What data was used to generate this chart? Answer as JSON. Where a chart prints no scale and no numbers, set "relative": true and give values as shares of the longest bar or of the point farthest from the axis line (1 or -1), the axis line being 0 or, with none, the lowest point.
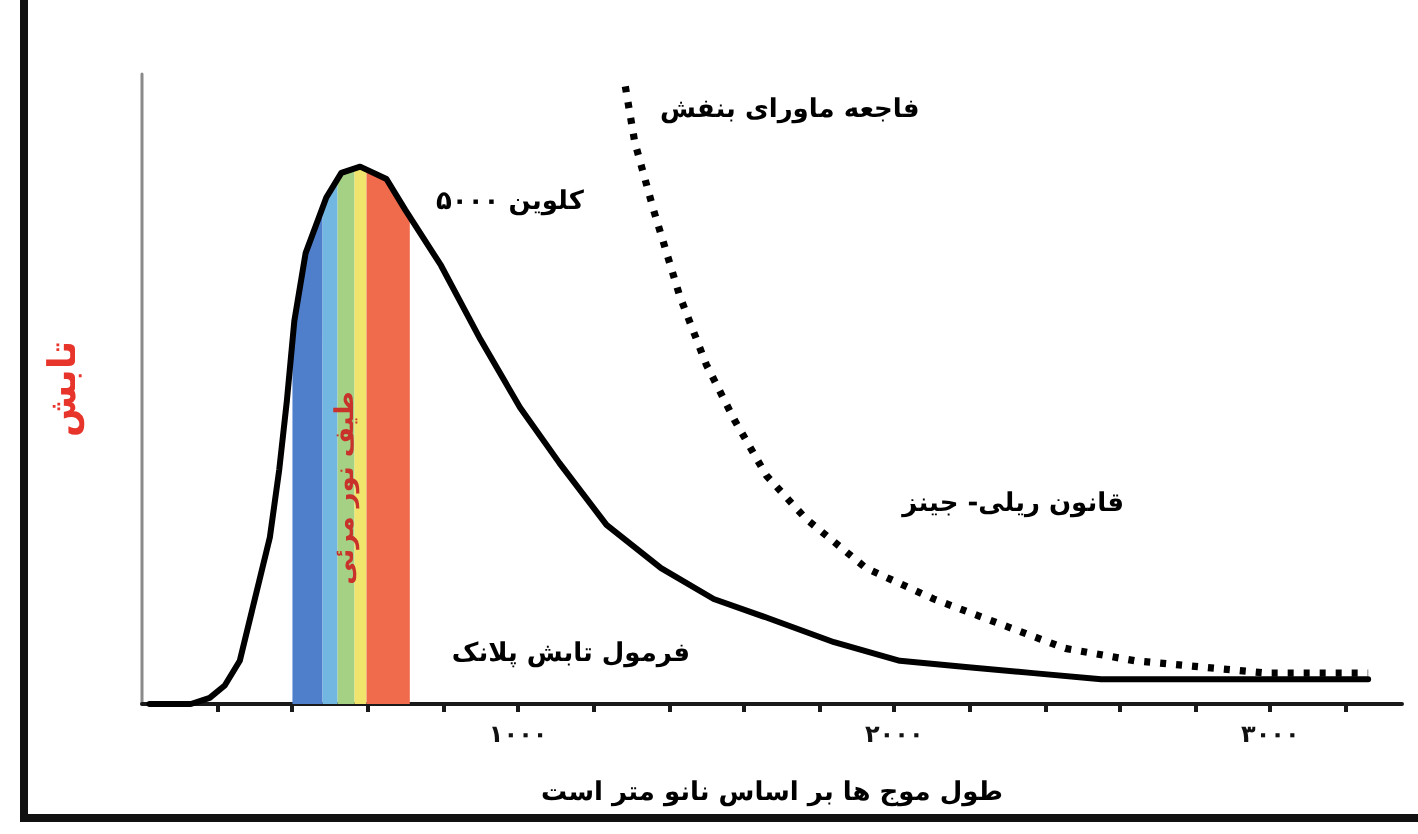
{
  "chart_data": {
    "type": "line",
    "xlabel": "طول موج ها بر اساس نانو متر است",
    "ylabel": "تابش",
    "relative": true,
    "marker": "none",
    "xlim": [
      0,
      3350
    ],
    "xticks": [
      {
        "value": 200,
        "label": null
      },
      {
        "value": 400,
        "label": null
      },
      {
        "value": 600,
        "label": null
      },
      {
        "value": 800,
        "label": null
      },
      {
        "value": 1000,
        "label": "۱۰۰۰"
      },
      {
        "value": 1200,
        "label": null
      },
      {
        "value": 1400,
        "label": null
      },
      {
        "value": 1600,
        "label": null
      },
      {
        "value": 1800,
        "label": null
      },
      {
        "value": 2000,
        "label": "۲۰۰۰"
      },
      {
        "value": 2200,
        "label": null
      },
      {
        "value": 2400,
        "label": null
      },
      {
        "value": 2600,
        "label": null
      },
      {
        "value": 2800,
        "label": null
      },
      {
        "value": 3000,
        "label": "۳۰۰۰"
      },
      {
        "value": 3200,
        "label": null
      }
    ],
    "annotations": [
      "فاجعه ماورای بنفش",
      "کلوین ۵۰۰۰"
    ],
    "bands": [
      {
        "axis": "x",
        "from": 400,
        "to": 480,
        "color": "#4f7fcb"
      },
      {
        "axis": "x",
        "from": 480,
        "to": 520,
        "color": "#72b6e2"
      },
      {
        "axis": "x",
        "from": 520,
        "to": 565,
        "color": "#a5d184",
        "label": "طیف نور مرئی"
      },
      {
        "axis": "x",
        "from": 565,
        "to": 597,
        "color": "#f1e46c"
      },
      {
        "axis": "x",
        "from": 597,
        "to": 712,
        "color": "#f06b4b"
      }
    ],
    "series": [
      {
        "name": "فرمول تابش پلانک",
        "color": "#000000",
        "line_style": "solid",
        "x": [
          20,
          130,
          180,
          220,
          260,
          300,
          340,
          365,
          385,
          405,
          435,
          490,
          530,
          580,
          650,
          700,
          795,
          900,
          1005,
          1110,
          1235,
          1380,
          1520,
          1660,
          1840,
          2015,
          2190,
          2370,
          2550,
          2900,
          3260
        ],
        "values": [
          0,
          0,
          0.01,
          0.03,
          0.07,
          0.17,
          0.27,
          0.38,
          0.49,
          0.62,
          0.73,
          0.82,
          0.86,
          0.87,
          0.85,
          0.8,
          0.71,
          0.59,
          0.48,
          0.39,
          0.29,
          0.22,
          0.17,
          0.14,
          0.1,
          0.07,
          0.06,
          0.05,
          0.04,
          0.04,
          0.04
        ]
      },
      {
        "name": "قانون ریلی- جینز",
        "color": "#000000",
        "line_style": "dotted",
        "x": [
          1285,
          1310,
          1360,
          1430,
          1500,
          1575,
          1660,
          1765,
          1925,
          2105,
          2280,
          2455,
          2640,
          2815,
          2990,
          3260
        ],
        "values": [
          1,
          0.91,
          0.8,
          0.66,
          0.55,
          0.46,
          0.37,
          0.3,
          0.22,
          0.17,
          0.13,
          0.09,
          0.07,
          0.06,
          0.05,
          0.05
        ]
      }
    ]
  }
}
